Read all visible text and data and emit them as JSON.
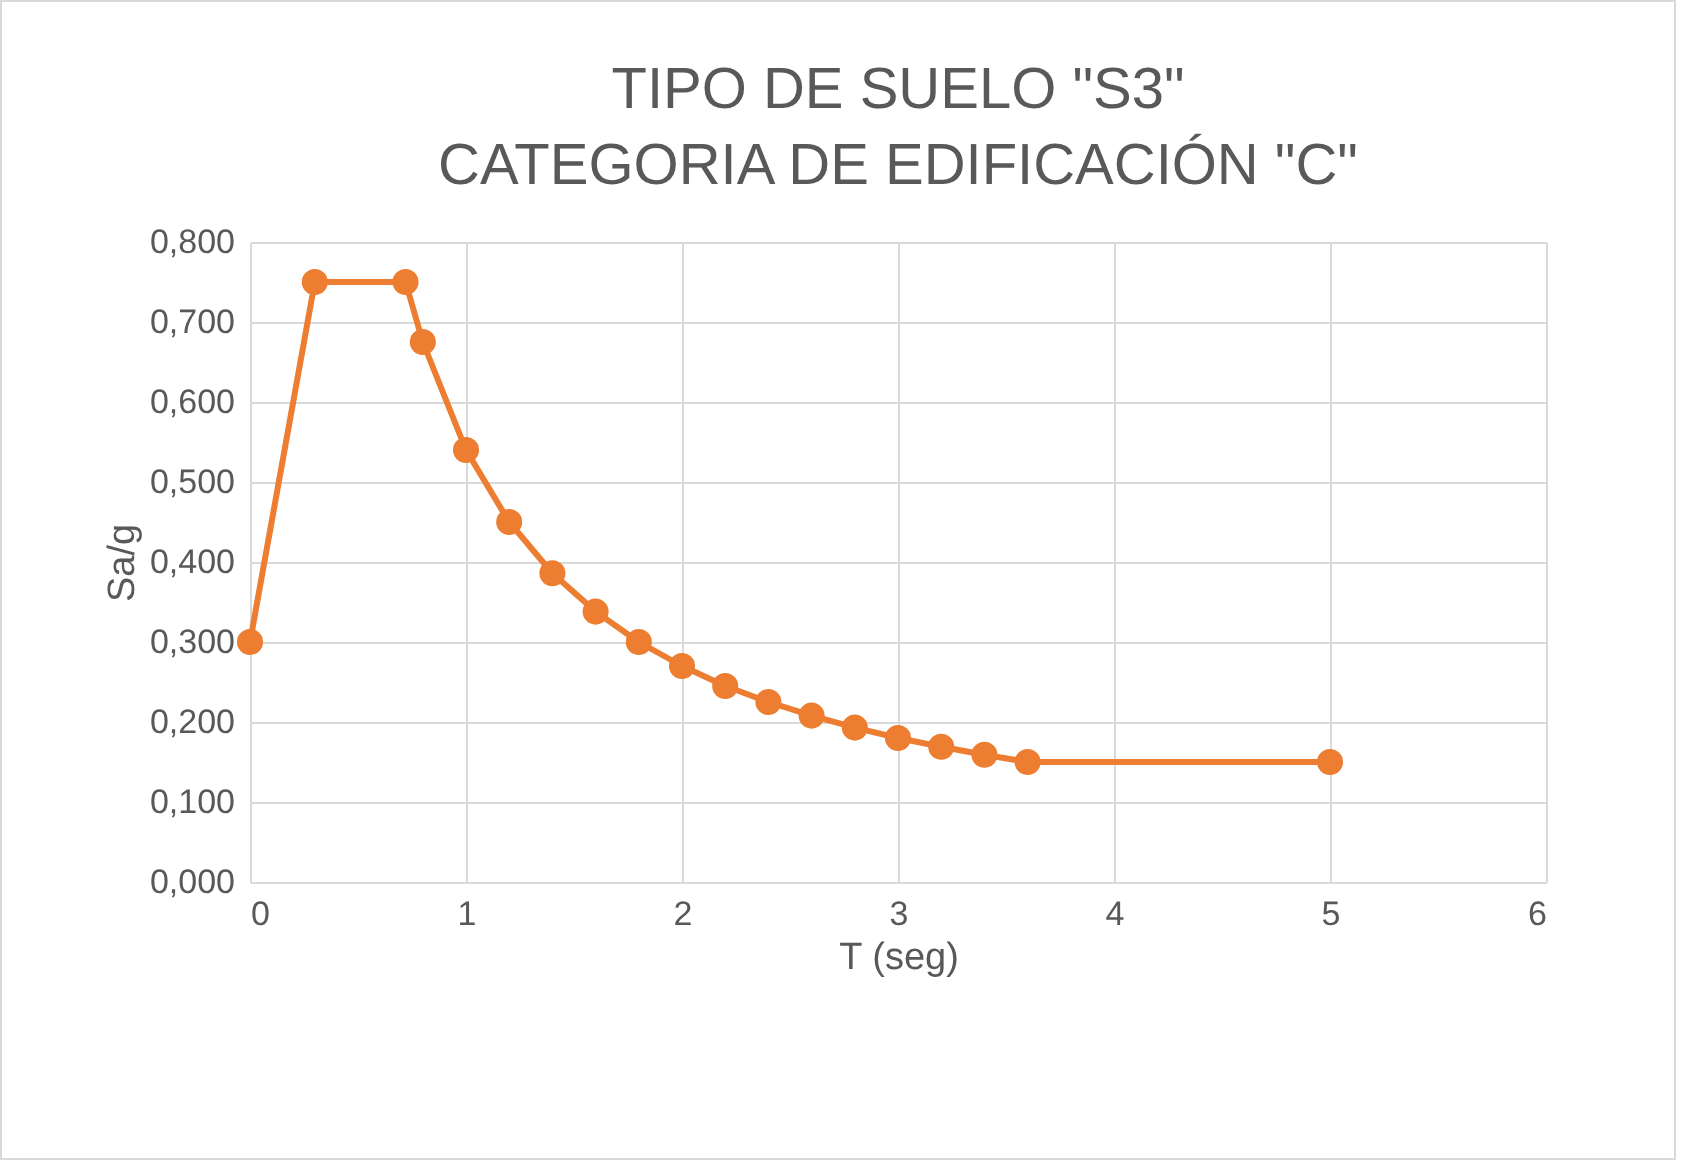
{
  "chart_data": {
    "type": "line",
    "title": [
      "TIPO DE SUELO \"S3\"",
      "CATEGORIA DE EDIFICACIÓN \"C\""
    ],
    "xlabel": "T (seg)",
    "ylabel": "Sa/g",
    "x": [
      0,
      0.3,
      0.72,
      0.8,
      1.0,
      1.2,
      1.4,
      1.6,
      1.8,
      2.0,
      2.2,
      2.4,
      2.6,
      2.8,
      3.0,
      3.2,
      3.4,
      3.6,
      5.0
    ],
    "series": [
      {
        "color": "#ed7d31",
        "values": [
          0.3,
          0.75,
          0.75,
          0.675,
          0.54,
          0.45,
          0.386,
          0.338,
          0.3,
          0.27,
          0.245,
          0.225,
          0.208,
          0.193,
          0.18,
          0.169,
          0.159,
          0.15,
          0.15
        ]
      }
    ],
    "xlim": [
      0,
      6
    ],
    "xticks": [
      0,
      1,
      2,
      3,
      4,
      5,
      6
    ],
    "ylim": [
      0,
      0.8
    ],
    "yticks": [
      {
        "value": 0,
        "label": "0,000"
      },
      {
        "value": 0.1,
        "label": "0,100"
      },
      {
        "value": 0.2,
        "label": "0,200"
      },
      {
        "value": 0.3,
        "label": "0,300"
      },
      {
        "value": 0.4,
        "label": "0,400"
      },
      {
        "value": 0.5,
        "label": "0,500"
      },
      {
        "value": 0.6,
        "label": "0,600"
      },
      {
        "value": 0.7,
        "label": "0,700"
      },
      {
        "value": 0.8,
        "label": "0,800"
      }
    ],
    "grid": true,
    "marker": "circle",
    "line_style": "solid"
  }
}
